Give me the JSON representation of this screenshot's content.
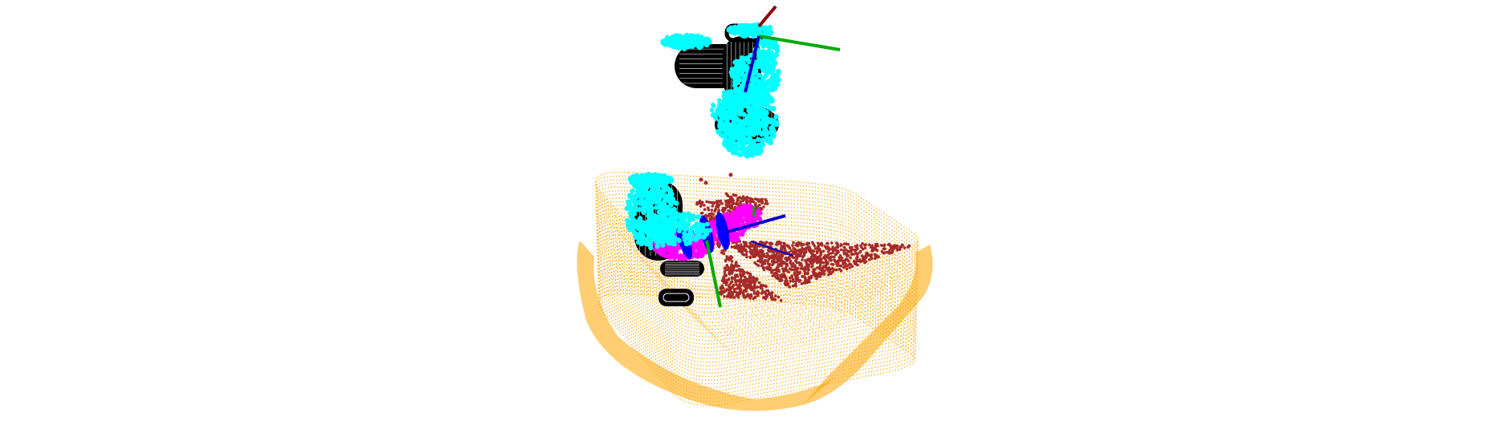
{
  "viewer": {
    "background": "#ffffff"
  },
  "colors": {
    "tray_points": "#ffa500",
    "object_points": "#a52a2a",
    "gripper_contact_points": "#00ffff",
    "gripper_mesh": "#000000",
    "gripper_mesh_highlight": "#ffffff",
    "fingertip_points": "#ff00ff",
    "axis_x": "#8b0000",
    "axis_y": "#00aa00",
    "axis_z": "#0000cc",
    "finger_pads": "#0000ff"
  },
  "legend": []
}
